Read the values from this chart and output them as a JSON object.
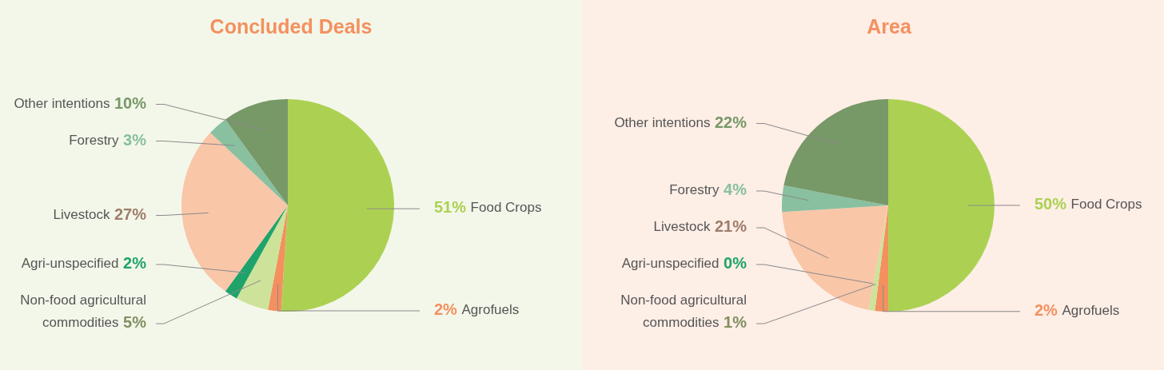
{
  "chart_data": [
    {
      "type": "pie",
      "title": "Concluded Deals",
      "categories": [
        "Food Crops",
        "Agrofuels",
        "Non-food agricultural commodities",
        "Agri-unspecified",
        "Livestock",
        "Forestry",
        "Other intentions"
      ],
      "values": [
        51,
        2,
        5,
        2,
        27,
        3,
        10
      ],
      "value_labels": [
        "51%",
        "2%",
        "5%",
        "2%",
        "27%",
        "3%",
        "10%"
      ],
      "colors": [
        "#acd152",
        "#f4905f",
        "#cde39a",
        "#1fa36b",
        "#f9c6a8",
        "#88c0a0",
        "#779867"
      ]
    },
    {
      "type": "pie",
      "title": "Area",
      "categories": [
        "Food Crops",
        "Agrofuels",
        "Non-food agricultural commodities",
        "Agri-unspecified",
        "Livestock",
        "Forestry",
        "Other intentions"
      ],
      "values": [
        50,
        2,
        1,
        0,
        21,
        4,
        22
      ],
      "value_labels": [
        "50%",
        "2%",
        "1%",
        "0%",
        "21%",
        "4%",
        "22%"
      ],
      "colors": [
        "#acd152",
        "#f4905f",
        "#cde39a",
        "#1fa36b",
        "#f9c6a8",
        "#88c0a0",
        "#779867"
      ]
    }
  ]
}
